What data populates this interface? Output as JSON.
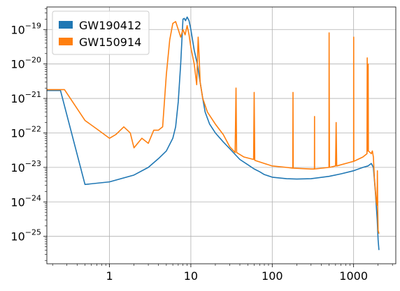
{
  "chart_data": {
    "type": "line",
    "title": "",
    "xlabel": "",
    "ylabel": "",
    "xscale": "log",
    "yscale": "log",
    "xlim": [
      0.17,
      3300
    ],
    "ylim": [
      1.6e-26,
      4.5e-19
    ],
    "grid": true,
    "legend_position": "top-left",
    "x_ticks": [
      {
        "value": 1,
        "label": "1"
      },
      {
        "value": 10,
        "label": "10"
      },
      {
        "value": 100,
        "label": "100"
      },
      {
        "value": 1000,
        "label": "1000"
      }
    ],
    "y_ticks": [
      {
        "value": 1e-25,
        "base": "10",
        "exp": "−25"
      },
      {
        "value": 1e-24,
        "base": "10",
        "exp": "−24"
      },
      {
        "value": 1e-23,
        "base": "10",
        "exp": "−23"
      },
      {
        "value": 1e-22,
        "base": "10",
        "exp": "−22"
      },
      {
        "value": 1e-21,
        "base": "10",
        "exp": "−21"
      },
      {
        "value": 1e-20,
        "base": "10",
        "exp": "−20"
      },
      {
        "value": 1e-19,
        "base": "10",
        "exp": "−19"
      }
    ],
    "series": [
      {
        "name": "GW190412",
        "color": "#1f77b4",
        "points": [
          [
            0.17,
            1.7e-21
          ],
          [
            0.25,
            1.7e-21
          ],
          [
            0.5,
            3.2e-24
          ],
          [
            1.0,
            3.8e-24
          ],
          [
            2.0,
            6e-24
          ],
          [
            3.0,
            1e-23
          ],
          [
            4.0,
            1.8e-23
          ],
          [
            5.0,
            3e-23
          ],
          [
            6.0,
            7e-23
          ],
          [
            6.5,
            1.5e-22
          ],
          [
            7.0,
            8e-22
          ],
          [
            7.5,
            1e-20
          ],
          [
            8.0,
            2e-19
          ],
          [
            8.3,
            2.1e-19
          ],
          [
            8.6,
            1.8e-19
          ],
          [
            9.0,
            2.3e-19
          ],
          [
            9.5,
            1.8e-19
          ],
          [
            10.0,
            1e-19
          ],
          [
            11.0,
            2.5e-20
          ],
          [
            12.0,
            1e-20
          ],
          [
            13.0,
            3e-21
          ],
          [
            14.0,
            1e-21
          ],
          [
            15.0,
            4e-22
          ],
          [
            17.0,
            1.8e-22
          ],
          [
            20.0,
            1e-22
          ],
          [
            25.0,
            5.5e-23
          ],
          [
            30.0,
            3.5e-23
          ],
          [
            40.0,
            1.7e-23
          ],
          [
            50.0,
            1.2e-23
          ],
          [
            60.0,
            9e-24
          ],
          [
            70.0,
            7.5e-24
          ],
          [
            80.0,
            6.2e-24
          ],
          [
            100.0,
            5.2e-24
          ],
          [
            150.0,
            4.7e-24
          ],
          [
            200.0,
            4.6e-24
          ],
          [
            300.0,
            4.7e-24
          ],
          [
            500.0,
            5.5e-24
          ],
          [
            700.0,
            6.5e-24
          ],
          [
            1000.0,
            8e-24
          ],
          [
            1300.0,
            1e-23
          ],
          [
            1500.0,
            1.1e-23
          ],
          [
            1650.0,
            1.3e-23
          ],
          [
            1750.0,
            1e-23
          ],
          [
            1850.0,
            2e-24
          ],
          [
            1950.0,
            3e-25
          ],
          [
            2000.0,
            8e-26
          ],
          [
            2048.0,
            4e-26
          ]
        ]
      },
      {
        "name": "GW150914",
        "color": "#ff7f0e",
        "points": [
          [
            0.17,
            1.8e-21
          ],
          [
            0.28,
            1.8e-21
          ],
          [
            0.5,
            2.3e-22
          ],
          [
            0.7,
            1.3e-22
          ],
          [
            1.0,
            7e-23
          ],
          [
            1.2,
            9e-23
          ],
          [
            1.5,
            1.5e-22
          ],
          [
            1.8,
            1e-22
          ],
          [
            2.0,
            3.7e-23
          ],
          [
            2.5,
            7e-23
          ],
          [
            3.0,
            5e-23
          ],
          [
            3.5,
            1.2e-22
          ],
          [
            4.0,
            1.2e-22
          ],
          [
            4.5,
            1.5e-22
          ],
          [
            5.0,
            5e-21
          ],
          [
            5.5,
            5e-20
          ],
          [
            6.0,
            1.5e-19
          ],
          [
            6.5,
            1.7e-19
          ],
          [
            7.0,
            1e-19
          ],
          [
            7.5,
            6e-20
          ],
          [
            8.0,
            1e-19
          ],
          [
            8.5,
            7e-20
          ],
          [
            9.0,
            1.3e-19
          ],
          [
            9.5,
            7e-20
          ],
          [
            10.0,
            3e-20
          ],
          [
            11.0,
            1e-20
          ],
          [
            11.8,
            2.5e-21
          ],
          [
            12.3,
            6e-20
          ],
          [
            12.6,
            2e-20
          ],
          [
            13.0,
            3e-21
          ],
          [
            14.0,
            1e-21
          ],
          [
            16.0,
            4e-22
          ],
          [
            20.0,
            1.8e-22
          ],
          [
            25.0,
            9e-23
          ],
          [
            30.0,
            4e-23
          ],
          [
            35.0,
            2.7e-23
          ],
          [
            35.9,
            2e-21
          ],
          [
            36.5,
            2.7e-23
          ],
          [
            45.0,
            2e-23
          ],
          [
            59.0,
            1.7e-23
          ],
          [
            60.0,
            1.5e-21
          ],
          [
            61.0,
            1.6e-23
          ],
          [
            80.0,
            1.3e-23
          ],
          [
            100.0,
            1.1e-23
          ],
          [
            150.0,
            1e-23
          ],
          [
            179.0,
            9.5e-24
          ],
          [
            180.0,
            1.5e-21
          ],
          [
            181.0,
            9.5e-24
          ],
          [
            300.0,
            9e-24
          ],
          [
            330.0,
            9e-24
          ],
          [
            331.0,
            3e-22
          ],
          [
            332.0,
            9e-24
          ],
          [
            498.0,
            1e-23
          ],
          [
            500.0,
            8e-20
          ],
          [
            502.0,
            1e-21
          ],
          [
            505.0,
            1e-23
          ],
          [
            600.0,
            1.1e-23
          ],
          [
            610.0,
            2e-22
          ],
          [
            620.0,
            1.1e-23
          ],
          [
            900.0,
            1.4e-23
          ],
          [
            1000.0,
            1.5e-23
          ],
          [
            1002.0,
            6e-20
          ],
          [
            1005.0,
            1.5e-23
          ],
          [
            1300.0,
            2e-23
          ],
          [
            1460.0,
            2.5e-23
          ],
          [
            1470.0,
            1.5e-20
          ],
          [
            1480.0,
            1e-22
          ],
          [
            1500.0,
            3e-23
          ],
          [
            1510.0,
            1e-20
          ],
          [
            1520.0,
            3e-23
          ],
          [
            1650.0,
            2.5e-23
          ],
          [
            1700.0,
            3e-23
          ],
          [
            1750.0,
            2e-23
          ],
          [
            1800.0,
            5e-24
          ],
          [
            1900.0,
            1e-24
          ],
          [
            1940.0,
            8e-25
          ],
          [
            1960.0,
            8e-24
          ],
          [
            1980.0,
            5e-25
          ],
          [
            2000.0,
            1.5e-25
          ],
          [
            2048.0,
            1.2e-25
          ]
        ]
      }
    ]
  }
}
